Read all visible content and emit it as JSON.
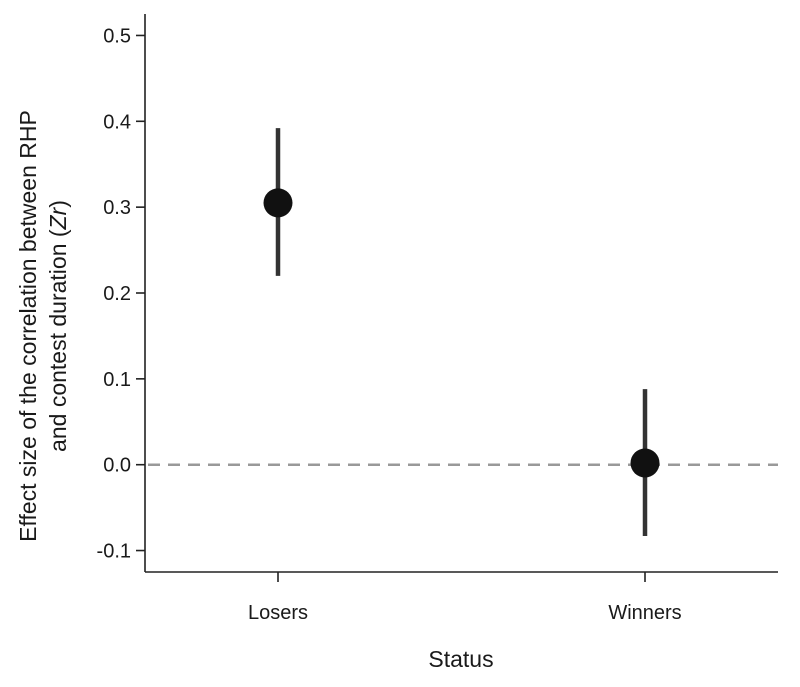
{
  "chart_data": {
    "type": "scatter",
    "title": "",
    "xlabel": "Status",
    "ylabel_line1": "Effect size of the correlation between RHP",
    "ylabel_line2_prefix": "and contest duration (",
    "ylabel_line2_symbol": "Zr",
    "ylabel_line2_suffix": ")",
    "categories": [
      "Losers",
      "Winners"
    ],
    "points": [
      {
        "category": "Losers",
        "estimate": 0.305,
        "ci_low": 0.22,
        "ci_high": 0.392
      },
      {
        "category": "Winners",
        "estimate": 0.002,
        "ci_low": -0.083,
        "ci_high": 0.088
      }
    ],
    "yticks": [
      "-0.1",
      "0.0",
      "0.1",
      "0.2",
      "0.3",
      "0.4",
      "0.5"
    ],
    "ylim": [
      -0.125,
      0.525
    ],
    "reference_line": {
      "y": 0.0,
      "style": "dashed",
      "color": "#999999"
    },
    "colors": {
      "point": "#111111",
      "errorbar": "#333333",
      "axis": "#222222"
    },
    "grid": false,
    "legend": "none"
  }
}
